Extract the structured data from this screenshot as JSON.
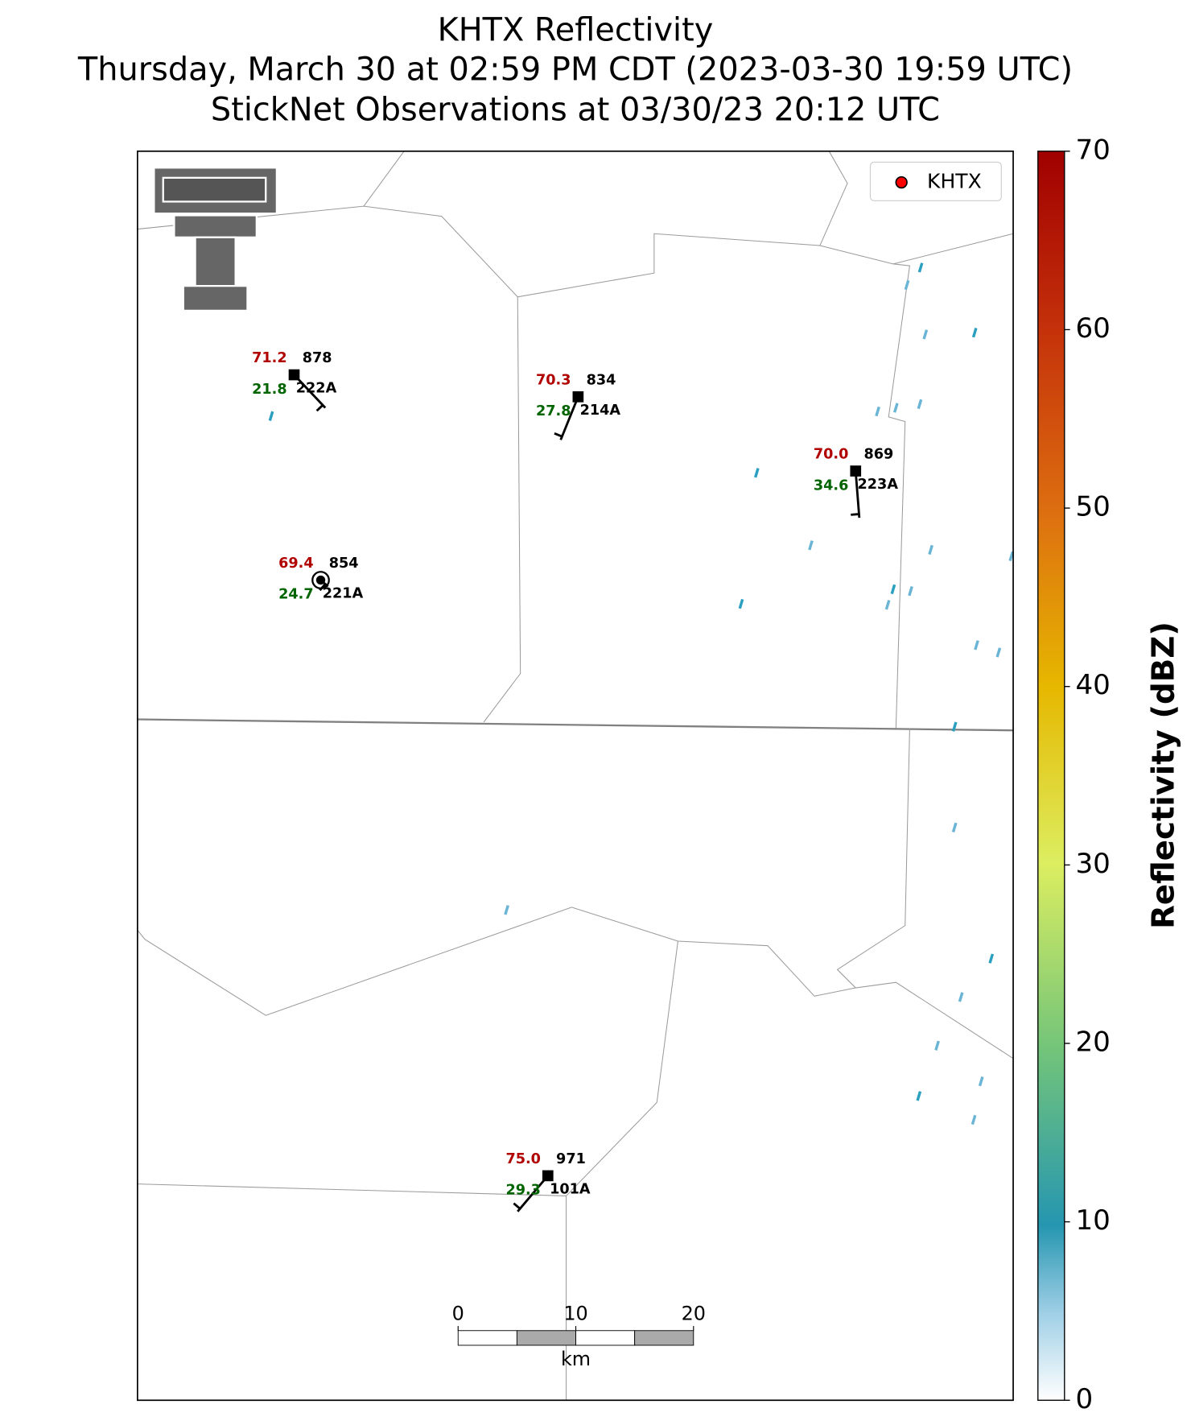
{
  "title": [
    "KHTX Reflectivity",
    "Thursday, March 30 at 02:59 PM CDT (2023-03-30 19:59 UTC)",
    "StickNet Observations at 03/30/23 20:12 UTC"
  ],
  "legend": {
    "label": "KHTX",
    "color": "#ff0000"
  },
  "stations": [
    {
      "temperature": "71.2",
      "dewpoint": "21.8",
      "value": "878",
      "id": "222A"
    },
    {
      "temperature": "70.3",
      "dewpoint": "27.8",
      "value": "834",
      "id": "214A"
    },
    {
      "temperature": "70.0",
      "dewpoint": "34.6",
      "value": "869",
      "id": "223A"
    },
    {
      "temperature": "69.4",
      "dewpoint": "24.7",
      "value": "854",
      "id": "221A"
    },
    {
      "temperature": "75.0",
      "dewpoint": "29.3",
      "value": "971",
      "id": "101A"
    }
  ],
  "colorbar": {
    "label": "Reflectivity (dBZ)",
    "lim": [
      0,
      70
    ],
    "ticks": [
      0,
      10,
      20,
      30,
      40,
      50,
      60,
      70
    ]
  },
  "scalebar": {
    "ticks": [
      0,
      10,
      20
    ],
    "unit": "km"
  }
}
